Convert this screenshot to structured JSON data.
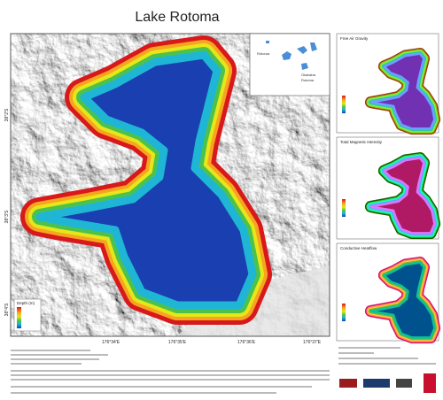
{
  "title": "Lake Rotoma",
  "map": {
    "longitudes": [
      "176°34'E",
      "176°35'E",
      "176°36'E",
      "176°37'E"
    ],
    "latitudes": [
      "38°2'S",
      "38°3'S",
      "38°4'S"
    ],
    "legend_title": "Depth (m)"
  },
  "inset": {
    "labels": [
      "Rotorua",
      "Okataina",
      "Rotoma"
    ]
  },
  "panels": [
    {
      "title": "Free Air Gravity"
    },
    {
      "title": "Total Magnetic Intensity"
    },
    {
      "title": "Conductive Heatflow"
    }
  ]
}
